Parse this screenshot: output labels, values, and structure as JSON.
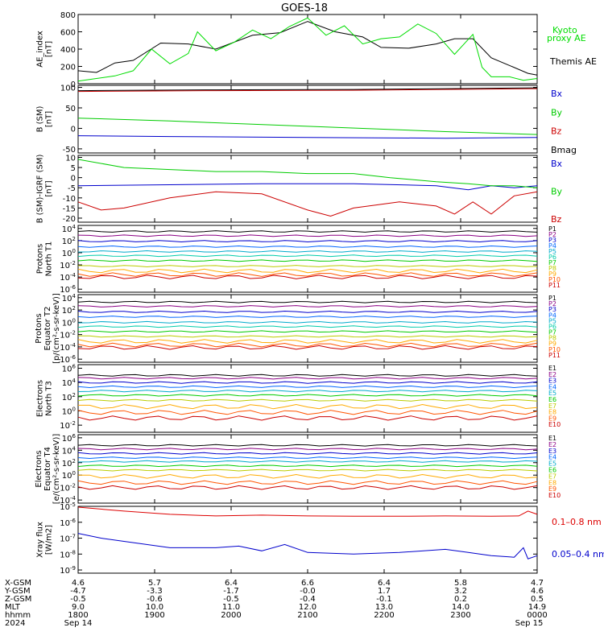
{
  "title": "GOES-18",
  "colors": {
    "black": "#000000",
    "green": "#00dd00",
    "red": "#dd0000",
    "blue": "#0000cc",
    "bx": "#0000cc",
    "by": "#00cc00",
    "bz": "#cc0000"
  },
  "channel_colors": [
    "#000000",
    "#8b0084",
    "#0000cc",
    "#0066ff",
    "#00aacc",
    "#00ccaa",
    "#00cc00",
    "#bbcc00",
    "#ffaa00",
    "#ff5500",
    "#cc0000"
  ],
  "ephemeris": {
    "labels": [
      "X-GSM",
      "Y-GSM",
      "Z-GSM",
      "MLT",
      "hhmm",
      "2024"
    ],
    "x_gsm": [
      "4.6",
      "5.7",
      "6.4",
      "6.6",
      "6.4",
      "5.8",
      "4.7"
    ],
    "y_gsm": [
      "-4.7",
      "-3.3",
      "-1.7",
      "-0.0",
      "1.7",
      "3.2",
      "4.6"
    ],
    "z_gsm": [
      "-0.5",
      "-0.6",
      "-0.5",
      "-0.4",
      "-0.1",
      "0.2",
      "0.5"
    ],
    "mlt": [
      "9.0",
      "10.0",
      "11.0",
      "12.0",
      "13.0",
      "14.0",
      "14.9"
    ],
    "hhmm": [
      "1800",
      "1900",
      "2000",
      "2100",
      "2200",
      "2300",
      "0000"
    ],
    "date_start": "Sep 14",
    "date_end": "Sep 15"
  },
  "chart_data": [
    {
      "type": "line",
      "ylabel": [
        "AE_index",
        "[nT]"
      ],
      "yticks": [
        "800",
        "600",
        "400",
        "200",
        "0"
      ],
      "ylim": [
        0,
        800
      ],
      "series": [
        {
          "name": "Themis AE",
          "color": "#000000",
          "points": [
            [
              0,
              150
            ],
            [
              0.04,
              130
            ],
            [
              0.08,
              240
            ],
            [
              0.12,
              270
            ],
            [
              0.18,
              470
            ],
            [
              0.24,
              460
            ],
            [
              0.3,
              400
            ],
            [
              0.38,
              560
            ],
            [
              0.44,
              590
            ],
            [
              0.5,
              720
            ],
            [
              0.56,
              600
            ],
            [
              0.62,
              540
            ],
            [
              0.66,
              420
            ],
            [
              0.72,
              410
            ],
            [
              0.78,
              460
            ],
            [
              0.82,
              520
            ],
            [
              0.86,
              520
            ],
            [
              0.9,
              300
            ],
            [
              0.94,
              210
            ],
            [
              0.98,
              120
            ],
            [
              1,
              100
            ]
          ]
        },
        {
          "name": "Kyoto proxy AE",
          "color": "#00dd00",
          "points": [
            [
              0,
              30
            ],
            [
              0.04,
              60
            ],
            [
              0.08,
              90
            ],
            [
              0.12,
              150
            ],
            [
              0.16,
              400
            ],
            [
              0.2,
              230
            ],
            [
              0.24,
              350
            ],
            [
              0.26,
              600
            ],
            [
              0.3,
              380
            ],
            [
              0.34,
              480
            ],
            [
              0.38,
              620
            ],
            [
              0.42,
              520
            ],
            [
              0.46,
              660
            ],
            [
              0.5,
              760
            ],
            [
              0.54,
              560
            ],
            [
              0.58,
              670
            ],
            [
              0.62,
              460
            ],
            [
              0.66,
              520
            ],
            [
              0.7,
              540
            ],
            [
              0.74,
              690
            ],
            [
              0.78,
              580
            ],
            [
              0.82,
              340
            ],
            [
              0.86,
              570
            ],
            [
              0.88,
              190
            ],
            [
              0.9,
              80
            ],
            [
              0.94,
              80
            ],
            [
              0.97,
              40
            ],
            [
              1,
              60
            ]
          ]
        }
      ],
      "legend": [
        {
          "text": "Kyoto",
          "color": "#00dd00"
        },
        {
          "text": "proxy AE",
          "color": "#00dd00"
        },
        {
          "text": "Themis AE",
          "color": "#000000"
        }
      ]
    },
    {
      "type": "line",
      "ylabel": [
        "B (SM)",
        "[nT]"
      ],
      "yticks": [
        "100",
        "50",
        "0",
        "-50"
      ],
      "ylim": [
        -60,
        105
      ],
      "series": [
        {
          "name": "Bx",
          "color": "#0000cc",
          "points": [
            [
              0,
              -18
            ],
            [
              0.2,
              -20
            ],
            [
              0.5,
              -22
            ],
            [
              0.8,
              -24
            ],
            [
              1,
              -22
            ]
          ]
        },
        {
          "name": "By",
          "color": "#00cc00",
          "points": [
            [
              0,
              25
            ],
            [
              0.2,
              18
            ],
            [
              0.5,
              5
            ],
            [
              0.8,
              -8
            ],
            [
              1,
              -15
            ]
          ]
        },
        {
          "name": "Bz",
          "color": "#cc0000",
          "points": [
            [
              0,
              90
            ],
            [
              0.3,
              92
            ],
            [
              0.6,
              93
            ],
            [
              0.8,
              95
            ],
            [
              1,
              97
            ]
          ]
        },
        {
          "name": "Bmag",
          "color": "#000000",
          "points": [
            [
              0,
              92
            ],
            [
              0.3,
              94
            ],
            [
              0.6,
              95
            ],
            [
              0.8,
              97
            ],
            [
              1,
              99
            ]
          ]
        }
      ],
      "legend": [
        {
          "text": "Bx",
          "color": "#0000cc"
        },
        {
          "text": "By",
          "color": "#00cc00"
        },
        {
          "text": "Bz",
          "color": "#cc0000"
        },
        {
          "text": "Bmag",
          "color": "#000000"
        }
      ]
    },
    {
      "type": "line",
      "ylabel": [
        "B (SM)-IGRF (SM)",
        "[nT]"
      ],
      "yticks": [
        "10",
        "5",
        "0",
        "-5",
        "-10",
        "-15",
        "-20"
      ],
      "ylim": [
        -22,
        11
      ],
      "series": [
        {
          "name": "Bx",
          "color": "#0000cc",
          "points": [
            [
              0,
              -4
            ],
            [
              0.2,
              -3.5
            ],
            [
              0.4,
              -3
            ],
            [
              0.6,
              -3
            ],
            [
              0.78,
              -4
            ],
            [
              0.85,
              -6
            ],
            [
              0.9,
              -4
            ],
            [
              0.95,
              -5
            ],
            [
              1,
              -4
            ]
          ]
        },
        {
          "name": "By",
          "color": "#00cc00",
          "points": [
            [
              0,
              9
            ],
            [
              0.1,
              5
            ],
            [
              0.2,
              4
            ],
            [
              0.3,
              3
            ],
            [
              0.4,
              3
            ],
            [
              0.5,
              2
            ],
            [
              0.6,
              2
            ],
            [
              0.68,
              0
            ],
            [
              0.78,
              -2
            ],
            [
              0.85,
              -3
            ],
            [
              0.9,
              -4
            ],
            [
              0.95,
              -4
            ],
            [
              1,
              -5
            ]
          ]
        },
        {
          "name": "Bz",
          "color": "#cc0000",
          "points": [
            [
              0,
              -12
            ],
            [
              0.05,
              -16
            ],
            [
              0.1,
              -15
            ],
            [
              0.2,
              -10
            ],
            [
              0.3,
              -7
            ],
            [
              0.4,
              -8
            ],
            [
              0.5,
              -16
            ],
            [
              0.55,
              -19
            ],
            [
              0.6,
              -15
            ],
            [
              0.7,
              -12
            ],
            [
              0.78,
              -14
            ],
            [
              0.82,
              -18
            ],
            [
              0.86,
              -12
            ],
            [
              0.9,
              -18
            ],
            [
              0.95,
              -9
            ],
            [
              1,
              -7
            ]
          ]
        }
      ],
      "legend": [
        {
          "text": "Bx",
          "color": "#0000cc"
        },
        {
          "text": "By",
          "color": "#00cc00"
        },
        {
          "text": "Bz",
          "color": "#cc0000"
        }
      ]
    },
    {
      "type": "line",
      "log": true,
      "ylabel": [
        "Protons",
        "North T1"
      ],
      "yticks": [
        "10^4",
        "10^2",
        "10^0",
        "10^-2",
        "10^-4",
        "10^-6"
      ],
      "ylim": [
        -6.5,
        4.5
      ],
      "channels": [
        "P1",
        "P2",
        "P3",
        "P4",
        "P5",
        "P6",
        "P7",
        "P8",
        "P9",
        "P10",
        "P11"
      ],
      "levels": [
        3.5,
        2.8,
        1.9,
        1.0,
        0.2,
        -0.5,
        -1.3,
        -2.2,
        -3.0,
        -3.6,
        -4.0
      ],
      "legend": [
        {
          "text": "P1",
          "color": "#000000"
        },
        {
          "text": "P2",
          "color": "#8b0084"
        },
        {
          "text": "P3",
          "color": "#0000cc"
        },
        {
          "text": "P4",
          "color": "#0066ff"
        },
        {
          "text": "P5",
          "color": "#00aacc"
        },
        {
          "text": "P6",
          "color": "#00ccaa"
        },
        {
          "text": "P7",
          "color": "#00cc00"
        },
        {
          "text": "P8",
          "color": "#bbcc00"
        },
        {
          "text": "P9",
          "color": "#ffaa00"
        },
        {
          "text": "P10",
          "color": "#ff5500"
        },
        {
          "text": "P11",
          "color": "#cc0000"
        }
      ]
    },
    {
      "type": "line",
      "log": true,
      "ylabel": [
        "Protons",
        "Equator T2",
        "[p/(cm²-s-sr-keV)]"
      ],
      "yticks": [
        "10^4",
        "10^2",
        "10^0",
        "10^-2",
        "10^-4",
        "10^-6"
      ],
      "ylim": [
        -6.5,
        4.5
      ],
      "channels": [
        "P1",
        "P2",
        "P3",
        "P4",
        "P5",
        "P6",
        "P7",
        "P8",
        "P9",
        "P10",
        "P11"
      ],
      "levels": [
        3.3,
        2.6,
        1.7,
        0.9,
        0.0,
        -0.7,
        -1.5,
        -2.3,
        -3.1,
        -3.7,
        -4.1
      ],
      "legend": [
        {
          "text": "P1",
          "color": "#000000"
        },
        {
          "text": "P2",
          "color": "#8b0084"
        },
        {
          "text": "P3",
          "color": "#0000cc"
        },
        {
          "text": "P4",
          "color": "#0066ff"
        },
        {
          "text": "P5",
          "color": "#00aacc"
        },
        {
          "text": "P6",
          "color": "#00ccaa"
        },
        {
          "text": "P7",
          "color": "#00cc00"
        },
        {
          "text": "P8",
          "color": "#bbcc00"
        },
        {
          "text": "P9",
          "color": "#ffaa00"
        },
        {
          "text": "P10",
          "color": "#ff5500"
        },
        {
          "text": "P11",
          "color": "#cc0000"
        }
      ]
    },
    {
      "type": "line",
      "log": true,
      "ylabel": [
        "Electrons",
        "North T3"
      ],
      "yticks": [
        "10^6",
        "10^4",
        "10^2",
        "10^0",
        "10^-2"
      ],
      "ylim": [
        -3,
        6.5
      ],
      "channels": [
        "E1",
        "E2",
        "E3",
        "E4",
        "E5",
        "E6",
        "E7",
        "E8",
        "E9",
        "E10"
      ],
      "levels": [
        5.0,
        4.6,
        4.0,
        3.4,
        2.8,
        2.2,
        1.5,
        0.6,
        -0.2,
        -1.0
      ],
      "legend": [
        {
          "text": "E1",
          "color": "#000000"
        },
        {
          "text": "E2",
          "color": "#8b0084"
        },
        {
          "text": "E3",
          "color": "#0000cc"
        },
        {
          "text": "E4",
          "color": "#0066ff"
        },
        {
          "text": "E5",
          "color": "#00aacc"
        },
        {
          "text": "E6",
          "color": "#00cc00"
        },
        {
          "text": "E7",
          "color": "#bbcc00"
        },
        {
          "text": "E8",
          "color": "#ffaa00"
        },
        {
          "text": "E9",
          "color": "#ff5500"
        },
        {
          "text": "E10",
          "color": "#cc0000"
        }
      ]
    },
    {
      "type": "line",
      "log": true,
      "ylabel": [
        "Electrons",
        "Equator T4",
        "[e/(cm²-s-sr-keV)]"
      ],
      "yticks": [
        "10^6",
        "10^4",
        "10^2",
        "10^0",
        "10^-2",
        "10^-4"
      ],
      "ylim": [
        -4.5,
        6.5
      ],
      "channels": [
        "E1",
        "E2",
        "E3",
        "E4",
        "E5",
        "E6",
        "E7",
        "E8",
        "E9",
        "E10"
      ],
      "levels": [
        4.8,
        4.2,
        3.5,
        2.8,
        2.2,
        1.5,
        0.8,
        -0.2,
        -1.2,
        -2.0
      ],
      "legend": [
        {
          "text": "E1",
          "color": "#000000"
        },
        {
          "text": "E2",
          "color": "#8b0084"
        },
        {
          "text": "E3",
          "color": "#0000cc"
        },
        {
          "text": "E4",
          "color": "#0066ff"
        },
        {
          "text": "E5",
          "color": "#00aacc"
        },
        {
          "text": "E6",
          "color": "#00cc00"
        },
        {
          "text": "E7",
          "color": "#bbcc00"
        },
        {
          "text": "E8",
          "color": "#ffaa00"
        },
        {
          "text": "E9",
          "color": "#ff5500"
        },
        {
          "text": "E10",
          "color": "#cc0000"
        }
      ]
    },
    {
      "type": "line",
      "log": true,
      "ylabel": [
        "Xray flux",
        "[W/m2]"
      ],
      "yticks": [
        "10^-5",
        "10^-6",
        "10^-7",
        "10^-8",
        "10^-9"
      ],
      "ylim": [
        -9.2,
        -5
      ],
      "series": [
        {
          "name": "0.1–0.8 nm",
          "color": "#dd0000",
          "points": [
            [
              0,
              -5.05
            ],
            [
              0.1,
              -5.3
            ],
            [
              0.2,
              -5.5
            ],
            [
              0.3,
              -5.6
            ],
            [
              0.4,
              -5.55
            ],
            [
              0.5,
              -5.6
            ],
            [
              0.6,
              -5.62
            ],
            [
              0.7,
              -5.62
            ],
            [
              0.8,
              -5.6
            ],
            [
              0.9,
              -5.62
            ],
            [
              0.96,
              -5.6
            ],
            [
              0.98,
              -5.3
            ],
            [
              1,
              -5.5
            ]
          ]
        },
        {
          "name": "0.05–0.4 nm",
          "color": "#0000cc",
          "points": [
            [
              0,
              -6.7
            ],
            [
              0.05,
              -7.0
            ],
            [
              0.1,
              -7.2
            ],
            [
              0.2,
              -7.6
            ],
            [
              0.3,
              -7.6
            ],
            [
              0.35,
              -7.5
            ],
            [
              0.4,
              -7.8
            ],
            [
              0.45,
              -7.4
            ],
            [
              0.5,
              -7.9
            ],
            [
              0.6,
              -8.0
            ],
            [
              0.7,
              -7.9
            ],
            [
              0.8,
              -7.7
            ],
            [
              0.85,
              -7.9
            ],
            [
              0.9,
              -8.1
            ],
            [
              0.95,
              -8.2
            ],
            [
              0.97,
              -7.6
            ],
            [
              0.98,
              -8.3
            ],
            [
              1,
              -8.1
            ]
          ]
        }
      ],
      "legend": [
        {
          "text": "0.1–0.8 nm",
          "color": "#dd0000"
        },
        {
          "text": "0.05–0.4 nm",
          "color": "#0000cc"
        }
      ]
    }
  ]
}
